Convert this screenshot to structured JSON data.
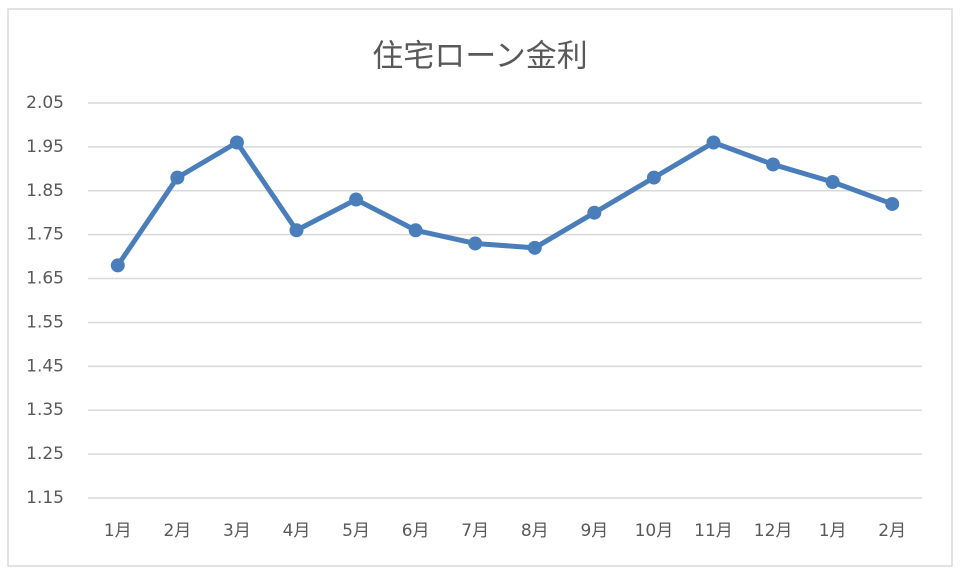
{
  "chart_data": {
    "type": "line",
    "title": "住宅ローン金利",
    "categories": [
      "1月",
      "2月",
      "3月",
      "4月",
      "5月",
      "6月",
      "7月",
      "8月",
      "9月",
      "10月",
      "11月",
      "12月",
      "1月",
      "2月"
    ],
    "series": [
      {
        "color": "#4a7ebb",
        "values": [
          1.68,
          1.88,
          1.96,
          1.76,
          1.83,
          1.76,
          1.73,
          1.72,
          1.8,
          1.88,
          1.96,
          1.91,
          1.87,
          1.82
        ]
      }
    ],
    "ylim": [
      1.15,
      2.05
    ],
    "yticks": [
      1.15,
      1.25,
      1.35,
      1.45,
      1.55,
      1.65,
      1.75,
      1.85,
      1.95,
      2.05
    ],
    "grid": true
  }
}
